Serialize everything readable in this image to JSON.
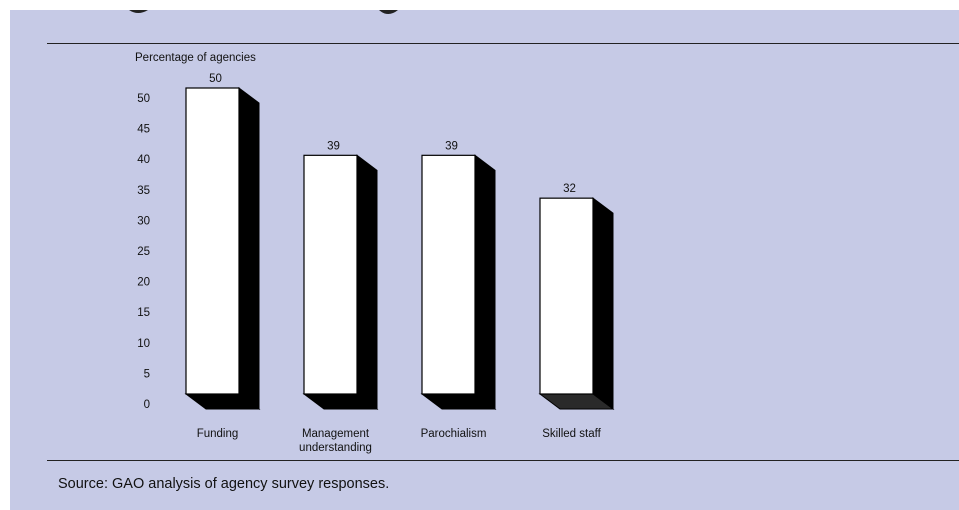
{
  "source_note": "Source: GAO analysis of agency survey responses.",
  "colors": {
    "background": "#c6cae6",
    "bar_face": "#ffffff",
    "bar_side": "#000000",
    "text": "#111111"
  },
  "chart_data": {
    "type": "bar",
    "ylabel": "Percentage of agencies",
    "ylim": [
      0,
      50
    ],
    "yticks": [
      0,
      5,
      10,
      15,
      20,
      25,
      30,
      35,
      40,
      45,
      50
    ],
    "categories": [
      [
        "Funding"
      ],
      [
        "Management",
        "understanding"
      ],
      [
        "Parochialism"
      ],
      [
        "Skilled staff"
      ]
    ],
    "values": [
      50,
      39,
      39,
      32
    ],
    "value_labels": [
      "50",
      "39",
      "39",
      "32"
    ],
    "grid": false,
    "style": "3d-bars"
  }
}
